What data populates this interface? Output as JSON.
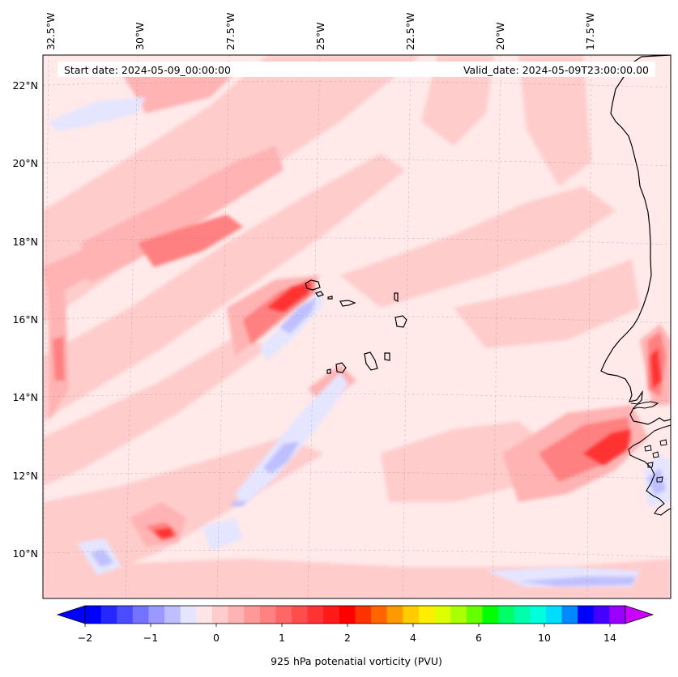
{
  "header": {
    "start_label": "Start date: 2024-05-09_00:00:00",
    "valid_label": "Valid_date: 2024-05-09T23:00:00.00"
  },
  "axes": {
    "lon_labels": [
      "32.5°W",
      "30°W",
      "27.5°W",
      "25°W",
      "22.5°W",
      "20°W",
      "17.5°W"
    ],
    "lat_labels": [
      "22°N",
      "20°N",
      "18°N",
      "16°N",
      "14°N",
      "12°N",
      "10°N"
    ]
  },
  "colorbar": {
    "title": "925 hPa potenatial vorticity (PVU)",
    "tick_labels": [
      "−2",
      "−1",
      "0",
      "1",
      "2",
      "4",
      "6",
      "10",
      "14"
    ],
    "colors": [
      "#0000ff",
      "#2626ff",
      "#4c4cff",
      "#7373ff",
      "#9999ff",
      "#bfbfff",
      "#e5e5ff",
      "#ffe5e5",
      "#ffcccc",
      "#ffb3b3",
      "#ff9999",
      "#ff8080",
      "#ff6666",
      "#ff4c4c",
      "#ff3333",
      "#ff1a1a",
      "#ff0000",
      "#ff3300",
      "#ff6600",
      "#ff9900",
      "#ffcc00",
      "#ffee00",
      "#ddff00",
      "#aaff00",
      "#66ff00",
      "#00ff00",
      "#00ff66",
      "#00ffaa",
      "#00ffdd",
      "#00ddff",
      "#0088ff",
      "#0000ff",
      "#4400ff",
      "#9900ff"
    ],
    "extend_low_color": "#0000ff",
    "extend_high_color": "#cc00ff"
  },
  "map": {
    "background_color": "#ffe9e9",
    "coastline_color": "#000000"
  }
}
